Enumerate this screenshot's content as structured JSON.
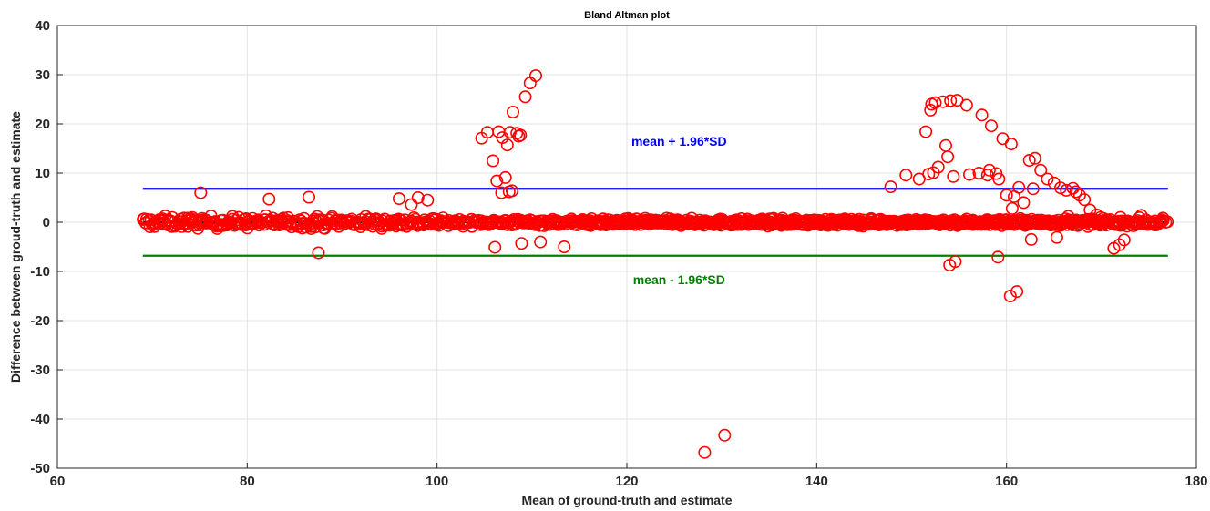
{
  "chart_data": {
    "type": "scatter",
    "title": "Bland Altman plot",
    "xlabel": "Mean of ground-truth and estimate",
    "ylabel": "Difference between groud-truth and estimate",
    "xlim": [
      60,
      180
    ],
    "ylim": [
      -50,
      40
    ],
    "xticks": [
      60,
      80,
      100,
      120,
      140,
      160,
      180
    ],
    "yticks": [
      -50,
      -40,
      -30,
      -20,
      -10,
      0,
      10,
      20,
      30,
      40
    ],
    "grid": true,
    "marker": "open-circle",
    "colors": {
      "points": "#ff0000",
      "upper": "#0000ff",
      "lower": "#008000",
      "mean": "#000000"
    },
    "reference_lines": [
      {
        "name": "upper",
        "y": 6.8,
        "x_range": [
          69,
          177
        ],
        "color": "#0000ff"
      },
      {
        "name": "mean",
        "y": 0,
        "x_range": [
          69,
          177
        ],
        "color": "#000000"
      },
      {
        "name": "lower",
        "y": -6.8,
        "x_range": [
          69,
          177
        ],
        "color": "#008000"
      }
    ],
    "annotations": [
      {
        "text": "mean + 1.96*SD",
        "x": 125.5,
        "y": 15.6,
        "color": "#0000ff"
      },
      {
        "text": "mean - 1.96*SD",
        "x": 125.5,
        "y": -12.6,
        "color": "#008000"
      }
    ],
    "outliers": [
      [
        75.1,
        6.0
      ],
      [
        82.3,
        4.7
      ],
      [
        86.5,
        5.1
      ],
      [
        87.5,
        -6.2
      ],
      [
        96.0,
        4.8
      ],
      [
        97.3,
        3.6
      ],
      [
        98.0,
        5.0
      ],
      [
        99.0,
        4.5
      ],
      [
        104.7,
        17.1
      ],
      [
        105.3,
        18.3
      ],
      [
        105.9,
        12.5
      ],
      [
        106.3,
        8.4
      ],
      [
        106.5,
        18.4
      ],
      [
        106.9,
        17.2
      ],
      [
        107.2,
        9.1
      ],
      [
        107.4,
        15.7
      ],
      [
        107.7,
        18.3
      ],
      [
        108.0,
        22.4
      ],
      [
        108.4,
        18.1
      ],
      [
        108.6,
        17.5
      ],
      [
        108.8,
        17.7
      ],
      [
        109.3,
        25.5
      ],
      [
        109.8,
        28.3
      ],
      [
        110.4,
        29.8
      ],
      [
        106.1,
        -5.1
      ],
      [
        108.9,
        -4.3
      ],
      [
        110.9,
        -4.0
      ],
      [
        113.4,
        -5.0
      ],
      [
        106.8,
        6.0
      ],
      [
        107.6,
        6.2
      ],
      [
        107.9,
        6.4
      ],
      [
        128.2,
        -46.8
      ],
      [
        130.3,
        -43.3
      ],
      [
        147.8,
        7.2
      ],
      [
        149.4,
        9.6
      ],
      [
        150.8,
        8.8
      ],
      [
        151.5,
        18.4
      ],
      [
        151.8,
        9.8
      ],
      [
        152.0,
        22.8
      ],
      [
        152.1,
        24.0
      ],
      [
        152.3,
        10.1
      ],
      [
        152.5,
        24.3
      ],
      [
        152.8,
        11.2
      ],
      [
        153.3,
        24.5
      ],
      [
        153.6,
        15.6
      ],
      [
        153.8,
        13.3
      ],
      [
        154.1,
        24.7
      ],
      [
        154.4,
        9.3
      ],
      [
        154.8,
        24.8
      ],
      [
        155.8,
        23.8
      ],
      [
        156.1,
        9.7
      ],
      [
        157.1,
        10.0
      ],
      [
        157.4,
        21.8
      ],
      [
        158.0,
        9.6
      ],
      [
        158.2,
        10.6
      ],
      [
        158.4,
        19.6
      ],
      [
        158.9,
        9.9
      ],
      [
        159.2,
        8.8
      ],
      [
        159.6,
        17.0
      ],
      [
        160.0,
        5.5
      ],
      [
        160.5,
        15.9
      ],
      [
        160.8,
        5.2
      ],
      [
        161.3,
        7.1
      ],
      [
        162.4,
        12.6
      ],
      [
        163.0,
        13.0
      ],
      [
        162.8,
        6.8
      ],
      [
        163.6,
        10.6
      ],
      [
        164.3,
        8.8
      ],
      [
        165.0,
        8.0
      ],
      [
        165.7,
        7.0
      ],
      [
        166.3,
        6.5
      ],
      [
        167.0,
        6.9
      ],
      [
        167.3,
        6.2
      ],
      [
        167.7,
        5.5
      ],
      [
        168.2,
        4.6
      ],
      [
        168.8,
        2.5
      ],
      [
        169.5,
        1.5
      ],
      [
        154.0,
        -8.7
      ],
      [
        154.6,
        -8.0
      ],
      [
        159.1,
        -7.1
      ],
      [
        160.4,
        -15.0
      ],
      [
        161.1,
        -14.1
      ],
      [
        171.3,
        -5.3
      ],
      [
        171.9,
        -4.6
      ],
      [
        172.4,
        -3.6
      ],
      [
        172.0,
        1.0
      ],
      [
        174.2,
        1.4
      ],
      [
        170.2,
        0.8
      ],
      [
        166.5,
        1.2
      ],
      [
        162.6,
        -3.5
      ],
      [
        165.3,
        -3.1
      ],
      [
        160.6,
        2.8
      ],
      [
        161.8,
        4.0
      ]
    ]
  }
}
